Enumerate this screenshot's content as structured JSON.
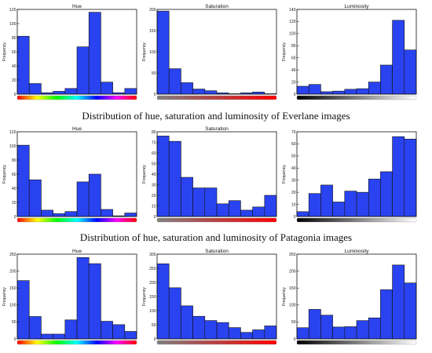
{
  "captions": [
    "Distribution of hue, saturation and luminosity of Everlane images",
    "Distribution of hue, saturation and luminosity of Patagonia images"
  ],
  "colors": {
    "bar": "#2a43f0",
    "bar_edge": "#111111",
    "axis": "#111111"
  },
  "chart_data": [
    {
      "type": "bar",
      "title": "Hue",
      "ylabel": "Frequency",
      "xlabel": "",
      "ylim": [
        0,
        120
      ],
      "yticks": [
        0,
        20,
        40,
        60,
        80,
        100,
        120
      ],
      "values": [
        82,
        15,
        2,
        4,
        8,
        67,
        116,
        17,
        2,
        8
      ],
      "color_strip": "hue"
    },
    {
      "type": "bar",
      "title": "Saturation",
      "ylabel": "Frequency",
      "xlabel": "",
      "ylim": [
        0,
        200
      ],
      "yticks": [
        0,
        50,
        100,
        150,
        200
      ],
      "values": [
        196,
        60,
        27,
        12,
        8,
        3,
        1,
        3,
        5,
        1
      ],
      "color_strip": "saturation"
    },
    {
      "type": "bar",
      "title": "Luminosity",
      "ylabel": "Frequency",
      "xlabel": "",
      "ylim": [
        0,
        140
      ],
      "yticks": [
        0,
        20,
        40,
        60,
        80,
        100,
        120,
        140
      ],
      "values": [
        13,
        16,
        4,
        5,
        8,
        9,
        20,
        48,
        122,
        73
      ],
      "color_strip": "luminosity"
    },
    {
      "type": "bar",
      "title": "Hue",
      "ylabel": "Frequency",
      "xlabel": "",
      "ylim": [
        0,
        120
      ],
      "yticks": [
        0,
        20,
        40,
        60,
        80,
        100,
        120
      ],
      "values": [
        101,
        52,
        9,
        4,
        7,
        49,
        60,
        10,
        1,
        5
      ],
      "color_strip": "hue"
    },
    {
      "type": "bar",
      "title": "Saturation",
      "ylabel": "Frequency",
      "xlabel": "",
      "ylim": [
        0,
        80
      ],
      "yticks": [
        0,
        10,
        20,
        30,
        40,
        50,
        60,
        70,
        80
      ],
      "values": [
        76,
        71,
        37,
        27,
        27,
        12,
        15,
        6,
        9,
        20
      ],
      "color_strip": "saturation"
    },
    {
      "type": "bar",
      "title": "",
      "ylabel": "Frequency",
      "xlabel": "",
      "ylim": [
        0,
        70
      ],
      "yticks": [
        0,
        10,
        20,
        30,
        40,
        50,
        60,
        70
      ],
      "values": [
        4,
        19,
        26,
        12,
        21,
        20,
        31,
        37,
        66,
        64
      ],
      "color_strip": "luminosity"
    },
    {
      "type": "bar",
      "title": "Hue",
      "ylabel": "Frequency",
      "xlabel": "",
      "ylim": [
        0,
        250
      ],
      "yticks": [
        0,
        50,
        100,
        150,
        200,
        250
      ],
      "values": [
        172,
        66,
        14,
        14,
        56,
        240,
        222,
        52,
        42,
        22
      ],
      "color_strip": "hue"
    },
    {
      "type": "bar",
      "title": "Saturation",
      "ylabel": "Frequency",
      "xlabel": "",
      "ylim": [
        0,
        300
      ],
      "yticks": [
        0,
        50,
        100,
        150,
        200,
        250,
        300
      ],
      "values": [
        266,
        181,
        117,
        80,
        65,
        58,
        40,
        23,
        32,
        46
      ],
      "color_strip": "saturation"
    },
    {
      "type": "bar",
      "title": "Luminosity",
      "ylabel": "Frequency",
      "xlabel": "",
      "ylim": [
        0,
        250
      ],
      "yticks": [
        0,
        50,
        100,
        150,
        200,
        250
      ],
      "values": [
        33,
        87,
        70,
        35,
        36,
        54,
        62,
        145,
        218,
        165
      ],
      "color_strip": "luminosity"
    }
  ]
}
